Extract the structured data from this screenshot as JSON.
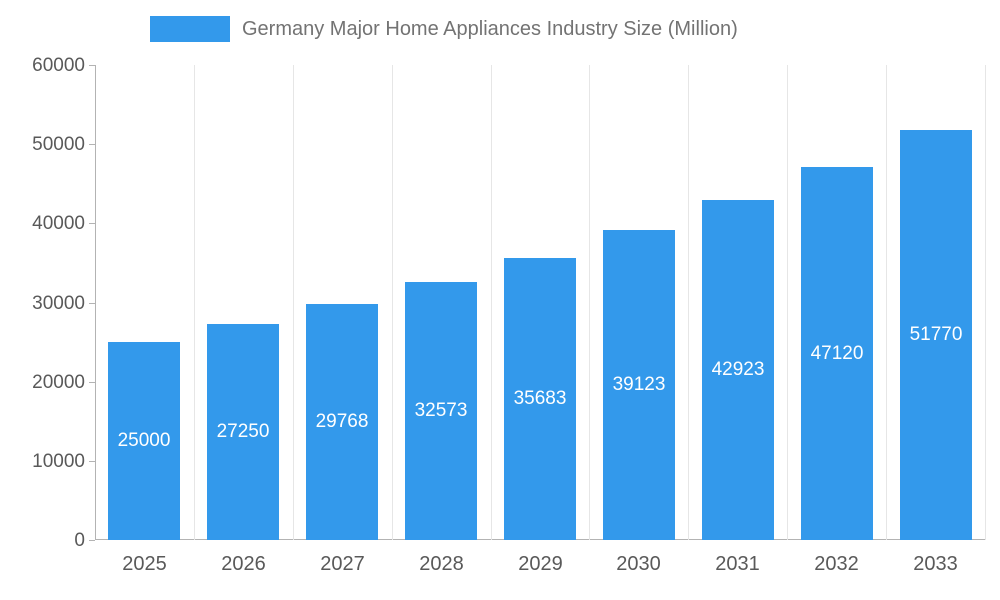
{
  "chart_data": {
    "type": "bar",
    "title": "Germany Major Home Appliances Industry Size (Million)",
    "categories": [
      "2025",
      "2026",
      "2027",
      "2028",
      "2029",
      "2030",
      "2031",
      "2032",
      "2033"
    ],
    "values": [
      25000,
      27250,
      29768,
      32573,
      35683,
      39123,
      42923,
      47120,
      51770
    ],
    "xlabel": "",
    "ylabel": "",
    "ylim": [
      0,
      60000
    ],
    "yticks": [
      0,
      10000,
      20000,
      30000,
      40000,
      50000,
      60000
    ],
    "grid": "vertical",
    "legend_position": "top",
    "bar_color": "#3399eb",
    "value_label_color": "#ffffff",
    "value_label_position": "inside-center"
  }
}
